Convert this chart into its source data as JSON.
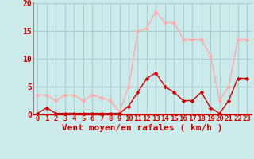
{
  "x": [
    0,
    1,
    2,
    3,
    4,
    5,
    6,
    7,
    8,
    9,
    10,
    11,
    12,
    13,
    14,
    15,
    16,
    17,
    18,
    19,
    20,
    21,
    22,
    23
  ],
  "rafales": [
    3.5,
    3.5,
    2.5,
    3.5,
    3.5,
    2.5,
    3.5,
    3.0,
    2.5,
    0.5,
    5.0,
    15.0,
    15.5,
    18.5,
    16.5,
    16.5,
    13.5,
    13.5,
    13.5,
    10.5,
    2.5,
    5.0,
    13.5,
    13.5
  ],
  "moyen": [
    0.2,
    1.2,
    0.2,
    0.2,
    0.2,
    0.2,
    0.2,
    0.2,
    0.2,
    0.2,
    1.5,
    4.0,
    6.5,
    7.5,
    5.0,
    4.0,
    2.5,
    2.5,
    4.0,
    1.2,
    0.2,
    2.5,
    6.5,
    6.5
  ],
  "color_rafales": "#ffaaaa",
  "color_moyen": "#cc0000",
  "bg_color": "#cceaea",
  "grid_color": "#aacccc",
  "xlabel": "Vent moyen/en rafales ( km/h )",
  "ylim": [
    0,
    20
  ],
  "xlim_min": -0.5,
  "xlim_max": 23.5,
  "yticks": [
    0,
    5,
    10,
    15,
    20
  ],
  "tick_fontsize": 7,
  "label_fontsize": 8
}
